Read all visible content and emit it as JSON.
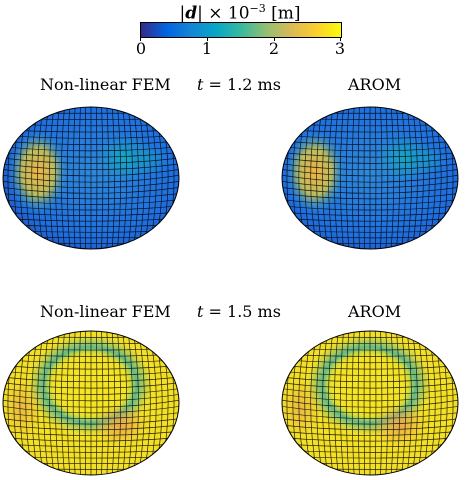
{
  "colorbar": {
    "title_prefix": "|",
    "title_var": "d",
    "title_suffix": "| × 10",
    "title_exp": "−3",
    "title_unit": " [m]",
    "ticks": [
      "0",
      "1",
      "2",
      "3"
    ],
    "colors": [
      "#352a87",
      "#0363e1",
      "#1485d4",
      "#06a7c6",
      "#38b99e",
      "#92bf73",
      "#d9ba56",
      "#fcce2e",
      "#f9fb0e"
    ]
  },
  "rows": [
    {
      "left_label": "Non-linear FEM",
      "time_var": "t",
      "time_text": " = 1.2 ms",
      "right_label": "AROM"
    },
    {
      "left_label": "Non-linear FEM",
      "time_var": "t",
      "time_text": " = 1.5 ms",
      "right_label": "AROM"
    }
  ]
}
